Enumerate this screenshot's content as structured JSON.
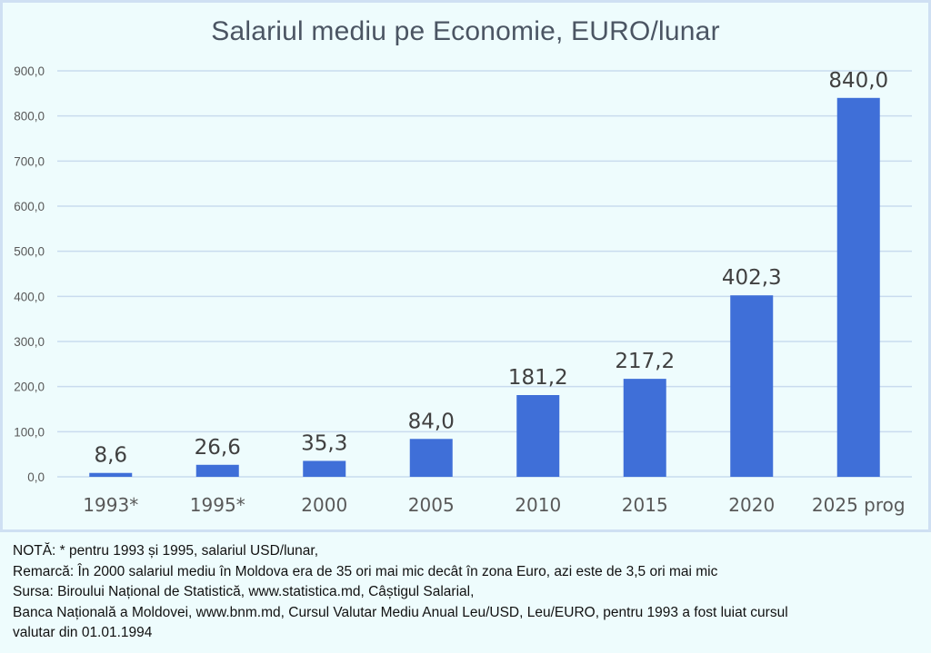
{
  "chart_data": {
    "type": "bar",
    "title": "Salariul mediu pe Economie, EURO/lunar",
    "xlabel": "",
    "ylabel": "",
    "categories": [
      "1993*",
      "1995*",
      "2000",
      "2005",
      "2010",
      "2015",
      "2020",
      "2025 prog"
    ],
    "values": [
      8.6,
      26.6,
      35.3,
      84.0,
      181.2,
      217.2,
      402.3,
      840.0
    ],
    "data_labels": [
      "8,6",
      "26,6",
      "35,3",
      "84,0",
      "181,2",
      "217,2",
      "402,3",
      "840,0"
    ],
    "ylim": [
      0,
      900
    ],
    "yticks": [
      0,
      100,
      200,
      300,
      400,
      500,
      600,
      700,
      800,
      900
    ],
    "ytick_labels": [
      "0,0",
      "100,0",
      "200,0",
      "300,0",
      "400,0",
      "500,0",
      "600,0",
      "700,0",
      "800,0",
      "900,0"
    ],
    "grid": true,
    "legend": "none",
    "bar_color": "#3f6fd8"
  },
  "notes": [
    "NOTĂ: * pentru 1993 și 1995, salariul USD/lunar,",
    "Remarcă: În 2000 salariul mediu în Moldova era de 35 ori mai mic decât în zona Euro, azi este de 3,5 ori mai mic",
    "Sursa: Biroului Național de Statistică, www.statistica.md, Câștigul Salarial,",
    "Banca Națională a Moldovei, www.bnm.md, Cursul Valutar Mediu Anual Leu/USD, Leu/EURO, pentru 1993 a fost luiat cursul",
    "valutar din 01.01.1994"
  ]
}
